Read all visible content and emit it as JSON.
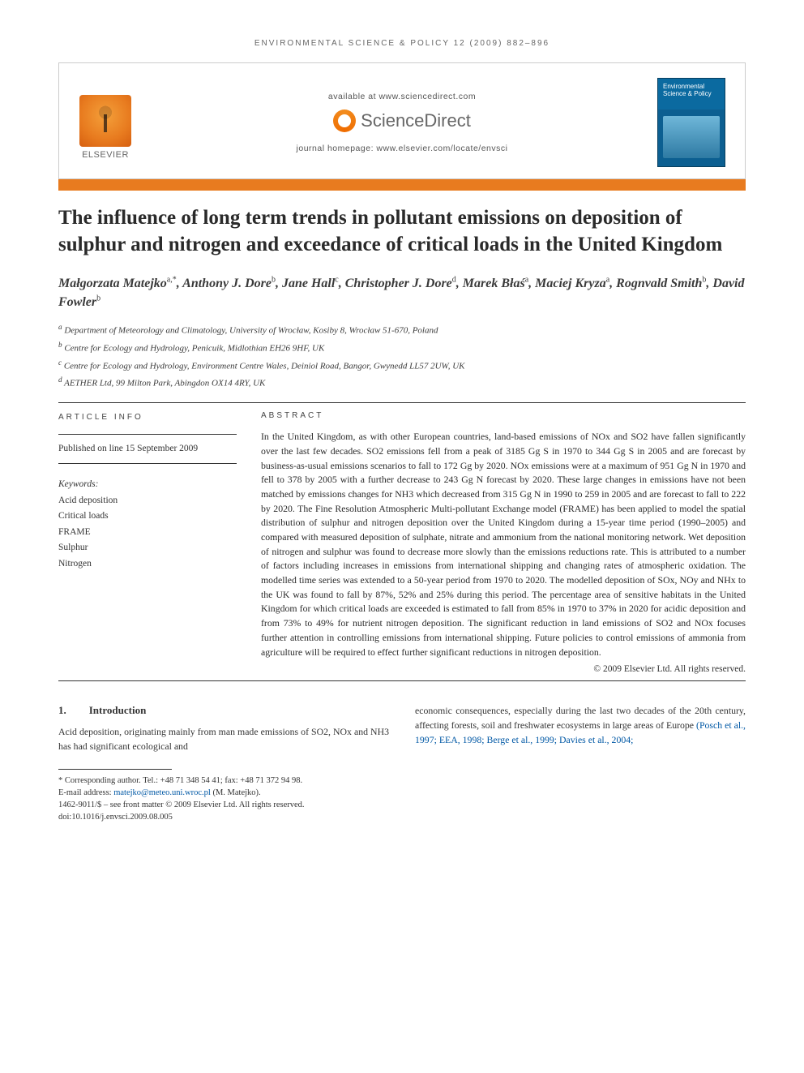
{
  "running_header": "ENVIRONMENTAL SCIENCE & POLICY 12 (2009) 882–896",
  "masthead": {
    "publisher_name": "ELSEVIER",
    "available_at": "available at www.sciencedirect.com",
    "sd_brand": "ScienceDirect",
    "homepage_label": "journal homepage: www.elsevier.com/locate/envsci",
    "journal_cover_title": "Environmental Science & Policy"
  },
  "colors": {
    "accent_bar": "#e87b1f",
    "link": "#0058a5",
    "text": "#2a2a2a",
    "rule": "#333333"
  },
  "title": "The influence of long term trends in pollutant emissions on deposition of sulphur and nitrogen and exceedance of critical loads in the United Kingdom",
  "authors_html": "Małgorzata Matejko<sup>a,*</sup>, Anthony J. Dore<sup>b</sup>, Jane Hall<sup>c</sup>, Christopher J. Dore<sup>d</sup>, Marek Błaś<sup>a</sup>, Maciej Kryza<sup>a</sup>, Rognvald Smith<sup>b</sup>, David Fowler<sup>b</sup>",
  "affiliations": [
    "a Department of Meteorology and Climatology, University of Wrocław, Kosiby 8, Wrocław 51-670, Poland",
    "b Centre for Ecology and Hydrology, Penicuik, Midlothian EH26 9HF, UK",
    "c Centre for Ecology and Hydrology, Environment Centre Wales, Deiniol Road, Bangor, Gwynedd LL57 2UW, UK",
    "d AETHER Ltd, 99 Milton Park, Abingdon OX14 4RY, UK"
  ],
  "article_info": {
    "label": "ARTICLE INFO",
    "published": "Published on line 15 September 2009",
    "keywords_label": "Keywords:",
    "keywords": [
      "Acid deposition",
      "Critical loads",
      "FRAME",
      "Sulphur",
      "Nitrogen"
    ]
  },
  "abstract": {
    "label": "ABSTRACT",
    "body": "In the United Kingdom, as with other European countries, land-based emissions of NOx and SO2 have fallen significantly over the last few decades. SO2 emissions fell from a peak of 3185 Gg S in 1970 to 344 Gg S in 2005 and are forecast by business-as-usual emissions scenarios to fall to 172 Gg by 2020. NOx emissions were at a maximum of 951 Gg N in 1970 and fell to 378 by 2005 with a further decrease to 243 Gg N forecast by 2020. These large changes in emissions have not been matched by emissions changes for NH3 which decreased from 315 Gg N in 1990 to 259 in 2005 and are forecast to fall to 222 by 2020. The Fine Resolution Atmospheric Multi-pollutant Exchange model (FRAME) has been applied to model the spatial distribution of sulphur and nitrogen deposition over the United Kingdom during a 15-year time period (1990–2005) and compared with measured deposition of sulphate, nitrate and ammonium from the national monitoring network. Wet deposition of nitrogen and sulphur was found to decrease more slowly than the emissions reductions rate. This is attributed to a number of factors including increases in emissions from international shipping and changing rates of atmospheric oxidation. The modelled time series was extended to a 50-year period from 1970 to 2020. The modelled deposition of SOx, NOy and NHx to the UK was found to fall by 87%, 52% and 25% during this period. The percentage area of sensitive habitats in the United Kingdom for which critical loads are exceeded is estimated to fall from 85% in 1970 to 37% in 2020 for acidic deposition and from 73% to 49% for nutrient nitrogen deposition. The significant reduction in land emissions of SO2 and NOx focuses further attention in controlling emissions from international shipping. Future policies to control emissions of ammonia from agriculture will be required to effect further significant reductions in nitrogen deposition.",
    "copyright": "© 2009 Elsevier Ltd. All rights reserved."
  },
  "intro": {
    "number": "1.",
    "heading": "Introduction",
    "col1": "Acid deposition, originating mainly from man made emissions of SO2, NOx and NH3 has had significant ecological and",
    "col2_plain": "economic consequences, especially during the last two decades of the 20th century, affecting forests, soil and freshwater ecosystems in large areas of Europe ",
    "col2_cite": "(Posch et al., 1997; EEA, 1998; Berge et al., 1999; Davies et al., 2004;"
  },
  "footnotes": {
    "corresponding": "* Corresponding author. Tel.: +48 71 348 54 41; fax: +48 71 372 94 98.",
    "email_label": "E-mail address: ",
    "email": "matejko@meteo.uni.wroc.pl",
    "email_tail": " (M. Matejko).",
    "front_matter": "1462-9011/$ – see front matter © 2009 Elsevier Ltd. All rights reserved.",
    "doi": "doi:10.1016/j.envsci.2009.08.005"
  }
}
